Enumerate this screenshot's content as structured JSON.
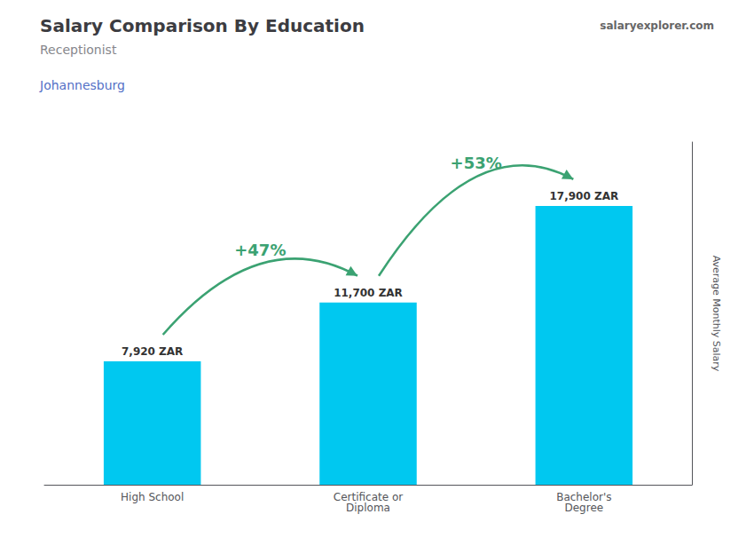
{
  "chart_data": {
    "type": "bar",
    "title": "Salary Comparison By Education",
    "subtitle": "Receptionist",
    "location": "Johannesburg",
    "source": "salaryexplorer.com",
    "categories": [
      "High School",
      "Certificate or\nDiploma",
      "Bachelor's\nDegree"
    ],
    "values": [
      7920,
      11700,
      17900
    ],
    "value_labels": [
      "7,920 ZAR",
      "11,700 ZAR",
      "17,900 ZAR"
    ],
    "data_labels": true,
    "color": "#00c8f0",
    "ylabel": "Average Monthly Salary",
    "ylim": [
      0,
      22000
    ],
    "tick_labels": "x",
    "grid": false,
    "annotations": [
      {
        "text": "+47%",
        "from": "High School",
        "to": "Certificate or\nDiploma"
      },
      {
        "text": "+53%",
        "from": "Certificate or\nDiploma",
        "to": "Bachelor's\nDegree"
      }
    ]
  }
}
